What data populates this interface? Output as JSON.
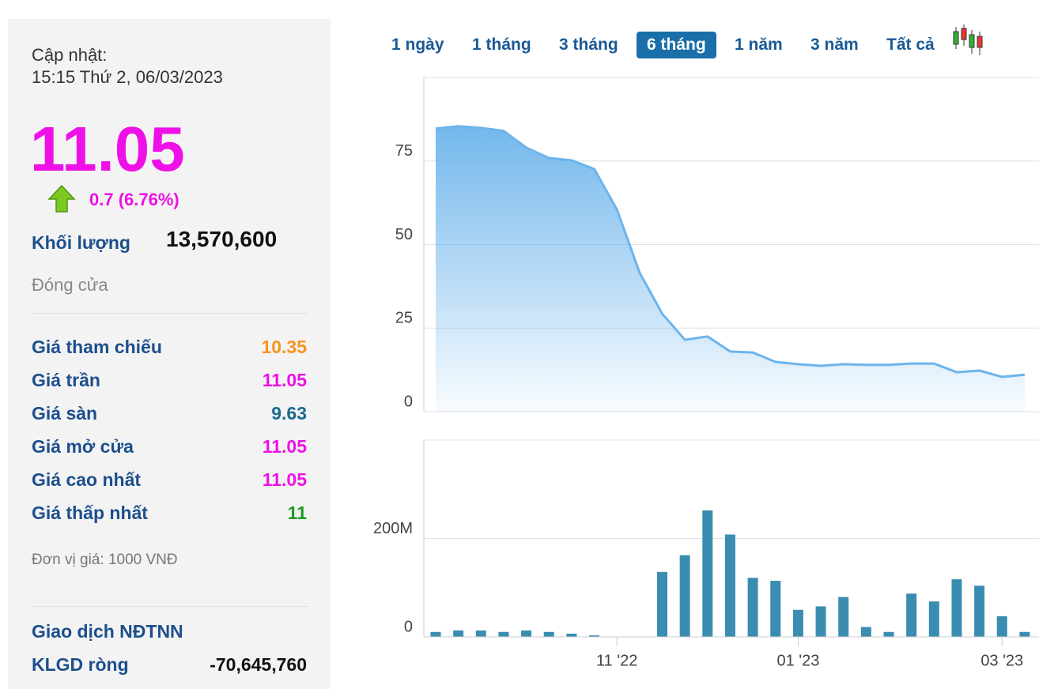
{
  "panel": {
    "update_label": "Cập nhật:",
    "update_time": "15:15 Thứ 2, 06/03/2023",
    "price": "11.05",
    "change": "0.7 (6.76%)",
    "volume_label": "Khối lượng",
    "volume": "13,570,600",
    "status": "Đóng cửa",
    "rows": [
      {
        "label": "Giá tham chiếu",
        "value": "10.35",
        "color": "#f7941d"
      },
      {
        "label": "Giá trần",
        "value": "11.05",
        "color": "#ee10e6"
      },
      {
        "label": "Giá sàn",
        "value": "9.63",
        "color": "#1b6a8c"
      },
      {
        "label": "Giá mở cửa",
        "value": "11.05",
        "color": "#ee10e6"
      },
      {
        "label": "Giá cao nhất",
        "value": "11.05",
        "color": "#ee10e6"
      },
      {
        "label": "Giá thấp nhất",
        "value": "11",
        "color": "#1f9a1f"
      }
    ],
    "unit": "Đơn vị giá: 1000 VNĐ",
    "foreign_title": "Giao dịch NĐTNN",
    "net_label": "KLGD ròng",
    "net_value": "-70,645,760"
  },
  "tabs": {
    "items": [
      "1 ngày",
      "1 tháng",
      "3 tháng",
      "6 tháng",
      "1 năm",
      "3 năm",
      "Tất cả"
    ],
    "active": 3
  },
  "chart_data": [
    {
      "type": "area",
      "color": "#6cb4ec",
      "values": [
        84.7,
        85.4,
        84.9,
        84,
        79,
        75.9,
        75.2,
        72.6,
        60.5,
        41.6,
        29.3,
        21.5,
        22.5,
        18,
        17.7,
        14.9,
        14.2,
        13.7,
        14.2,
        14,
        14,
        14.4,
        14.4,
        11.8,
        12.3,
        10.4,
        11.05
      ],
      "ylim": [
        0,
        100
      ],
      "yticks": [
        0,
        25,
        50,
        75
      ],
      "grid": true
    },
    {
      "type": "bar",
      "color": "#3a8db0",
      "categories": [
        null,
        null,
        null,
        null,
        null,
        null,
        null,
        null,
        "11 '22",
        null,
        null,
        null,
        null,
        null,
        null,
        null,
        "01 '23",
        null,
        null,
        null,
        null,
        null,
        null,
        null,
        null,
        "03 '23",
        null
      ],
      "values": [
        10,
        13,
        13,
        10,
        13,
        10,
        6.5,
        3,
        0,
        0,
        132,
        166,
        257,
        208,
        120,
        114,
        55,
        62,
        81,
        20,
        10,
        88,
        72,
        117,
        104,
        42,
        10
      ],
      "ylim": [
        0,
        400
      ],
      "yticks": [
        0,
        {
          "value": 200,
          "label": "200M"
        }
      ],
      "grid": true
    }
  ]
}
